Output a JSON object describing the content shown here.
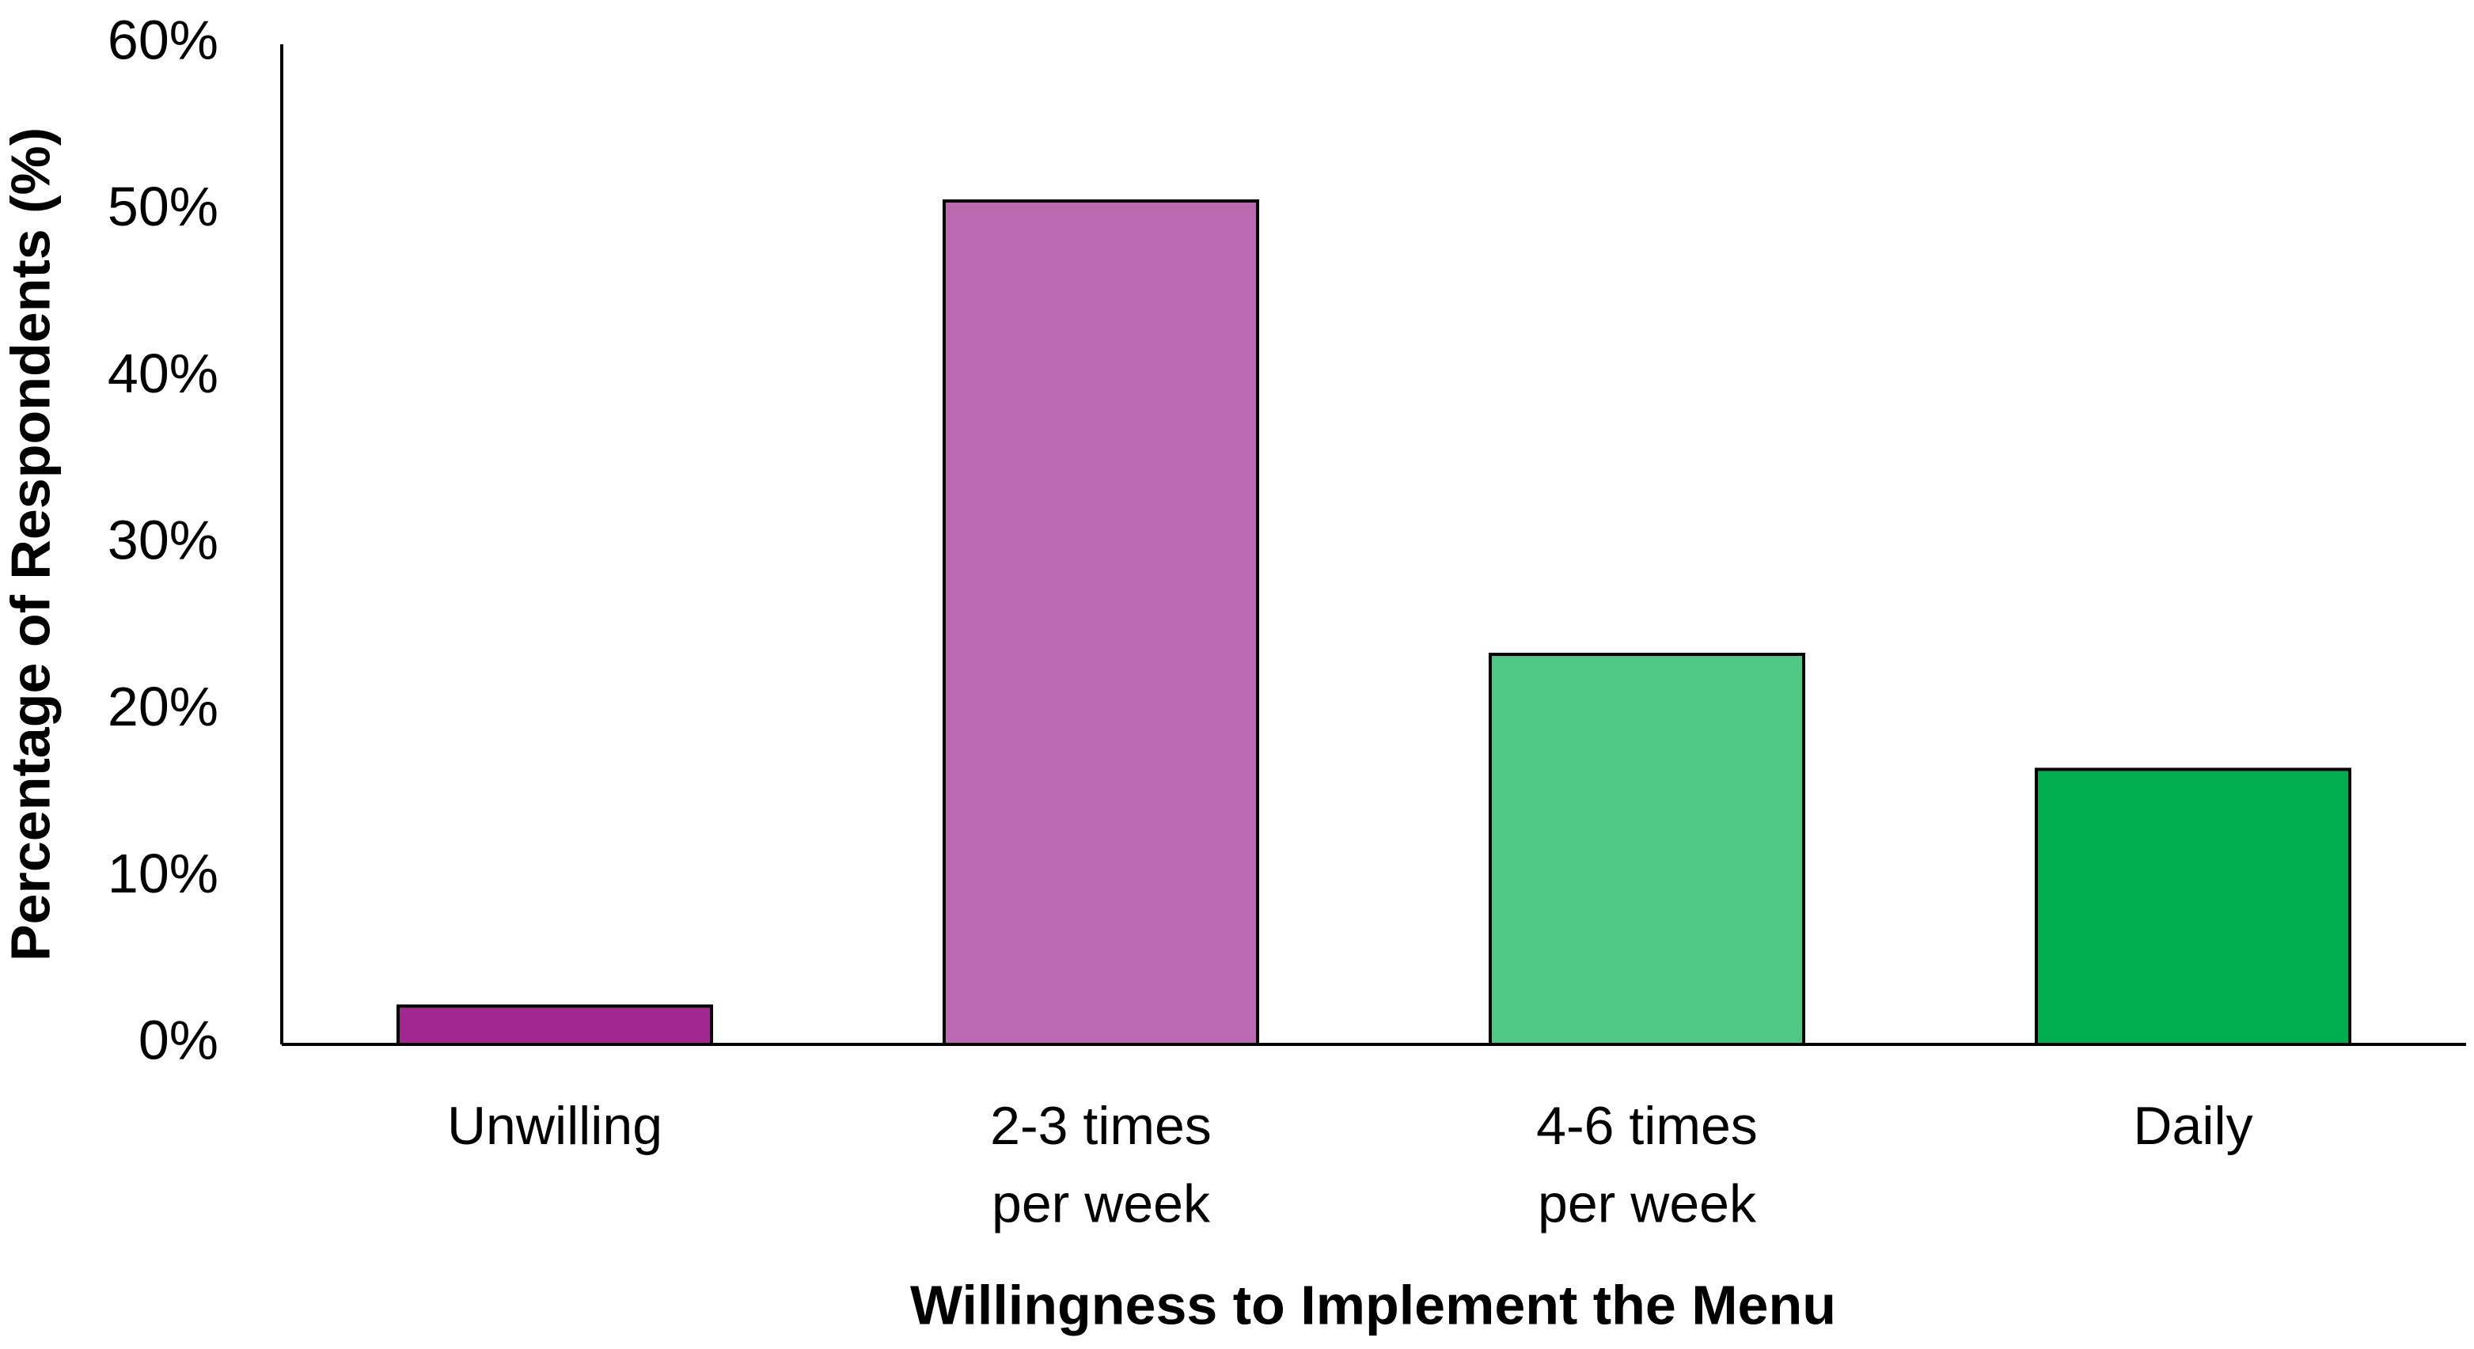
{
  "chart_data": {
    "type": "bar",
    "x_label": "Willingness to Implement the Menu",
    "y_label": "Percentage of Respondents (%)",
    "categories": [
      "Unwilling",
      "2-3 times\nper week",
      "4-6 times\nper week",
      "Daily"
    ],
    "values": [
      2.3,
      50.6,
      23.4,
      16.5
    ],
    "colors": [
      "#a0288f",
      "#bb69b0",
      "#4fc785",
      "#00ae4f"
    ],
    "ylim": [
      0,
      60
    ],
    "yticks": [
      {
        "value": 0,
        "label": "0%"
      },
      {
        "value": 10,
        "label": "10%"
      },
      {
        "value": 20,
        "label": "20%"
      },
      {
        "value": 30,
        "label": "30%"
      },
      {
        "value": 40,
        "label": "40%"
      },
      {
        "value": 50,
        "label": "50%"
      },
      {
        "value": 60,
        "label": "60%"
      }
    ],
    "grid": false
  }
}
